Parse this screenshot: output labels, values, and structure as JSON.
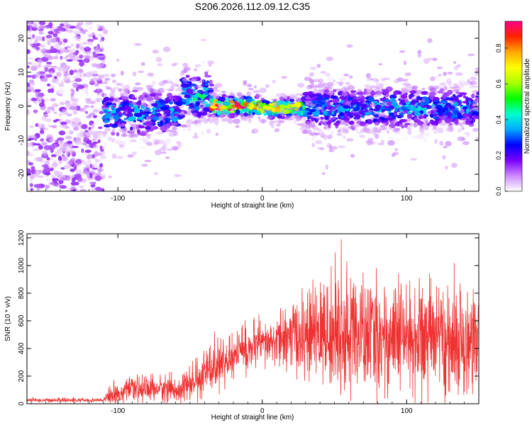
{
  "title": "S206.2026.112.09.12.C35",
  "chart_data": [
    {
      "type": "heatmap",
      "title": "S206.2026.112.09.12.C35",
      "xlabel": "Height of straight line (km)",
      "ylabel": "Frequency (Hz)",
      "xlim": [
        -163,
        150
      ],
      "ylim": [
        -25,
        25
      ],
      "xticks": [
        -100,
        0,
        100
      ],
      "xtick_labels": [
        "-100",
        "0",
        "100"
      ],
      "yticks": [
        -20,
        -10,
        0,
        10,
        20
      ],
      "ytick_labels": [
        "-20",
        "-10",
        "0",
        "10",
        "20"
      ],
      "colorbar": {
        "label": "Normalized spectral amplitude",
        "range": [
          0,
          0.95
        ],
        "ticks": [
          0.0,
          0.2,
          0.4,
          0.6,
          0.8
        ],
        "tick_labels": [
          "0.0",
          "0.2",
          "0.4",
          "0.6",
          "0.8"
        ],
        "colors": [
          "#ffffff",
          "#cc88ff",
          "#7a00ff",
          "#0000ff",
          "#00aaff",
          "#00ffcc",
          "#00ff00",
          "#aaff00",
          "#ffff00",
          "#ffaa00",
          "#ff2200",
          "#ff0088"
        ]
      },
      "ridge": {
        "segments": [
          {
            "x": [
              -163,
              -110
            ],
            "freq_center": 0,
            "freq_spread": 25,
            "amplitude": 0.08
          },
          {
            "x": [
              -110,
              -55
            ],
            "freq_center": -2,
            "freq_spread": 4,
            "amplitude": 0.3
          },
          {
            "x": [
              -55,
              -35
            ],
            "freq_center": 3,
            "freq_spread": 4,
            "amplitude": 0.35
          },
          {
            "x": [
              -35,
              0
            ],
            "freq_center": 0,
            "freq_spread": 1.5,
            "amplitude": 0.8
          },
          {
            "x": [
              0,
              30
            ],
            "freq_center": -0.5,
            "freq_spread": 1.5,
            "amplitude": 0.6
          },
          {
            "x": [
              30,
              150
            ],
            "freq_center": -0.5,
            "freq_spread": 3.5,
            "amplitude": 0.3
          }
        ]
      }
    },
    {
      "type": "line",
      "xlabel": "Height of straight line (km)",
      "ylabel": "SNR (10 * v/v)",
      "xlim": [
        -163,
        150
      ],
      "ylim": [
        0,
        1230
      ],
      "xticks": [
        -100,
        0,
        100
      ],
      "xtick_labels": [
        "-100",
        "0",
        "100"
      ],
      "yticks": [
        0,
        200,
        400,
        600,
        800,
        1000,
        1200
      ],
      "ytick_labels": [
        "0",
        "200",
        "400",
        "600",
        "800",
        "1000",
        "1200"
      ],
      "series": [
        {
          "name": "SNR",
          "color": "#ee3333",
          "envelope": {
            "x": [
              -163,
              -110,
              -105,
              -90,
              -75,
              -60,
              -45,
              -38,
              -25,
              -15,
              0,
              10,
              20,
              40,
              55,
              70,
              100,
              130,
              150
            ],
            "y_mean": [
              25,
              25,
              60,
              100,
              110,
              100,
              160,
              250,
              300,
              380,
              420,
              450,
              480,
              500,
              510,
              480,
              470,
              460,
              460
            ],
            "y_spread": [
              10,
              10,
              50,
              60,
              70,
              60,
              90,
              120,
              110,
              120,
              110,
              120,
              180,
              250,
              320,
              300,
              280,
              260,
              280
            ]
          }
        }
      ]
    }
  ]
}
